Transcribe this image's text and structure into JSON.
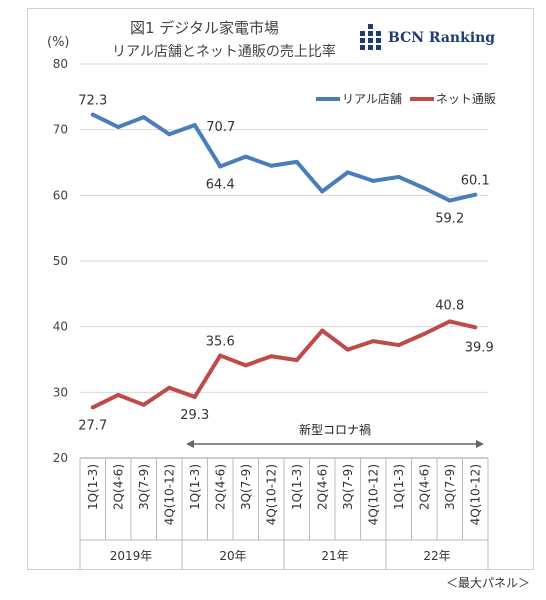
{
  "header": {
    "title": "図1 デジタル家電市場",
    "subtitle": "リアル店舗とネット通販の売上比率",
    "unit": "(%)",
    "brand": "BCN Ranking"
  },
  "footer_note": "＜最大パネル＞",
  "colors": {
    "real": "#4a7ebb",
    "net": "#be4b48",
    "axis": "#888888",
    "grid": "#d9d9d9"
  },
  "chart_data": {
    "type": "line",
    "categories": [
      "1Q(1-3)",
      "2Q(4-6)",
      "3Q(7-9)",
      "4Q(10-12)",
      "1Q(1-3)",
      "2Q(4-6)",
      "3Q(7-9)",
      "4Q(10-12)",
      "1Q(1-3)",
      "2Q(4-6)",
      "3Q(7-9)",
      "4Q(10-12)",
      "1Q(1-3)",
      "2Q(4-6)",
      "3Q(7-9)",
      "4Q(10-12)"
    ],
    "year_groups": [
      {
        "label": "2019年",
        "count": 4
      },
      {
        "label": "20年",
        "count": 4
      },
      {
        "label": "21年",
        "count": 4
      },
      {
        "label": "22年",
        "count": 4
      }
    ],
    "series": [
      {
        "name": "リアル店舗",
        "color": "#4a7ebb",
        "values": [
          72.3,
          70.4,
          71.9,
          69.3,
          70.7,
          64.4,
          65.9,
          64.5,
          65.1,
          60.6,
          63.5,
          62.2,
          62.8,
          61.1,
          59.2,
          60.1
        ]
      },
      {
        "name": "ネット通販",
        "color": "#be4b48",
        "values": [
          27.7,
          29.6,
          28.1,
          30.7,
          29.3,
          35.6,
          34.1,
          35.5,
          34.9,
          39.4,
          36.5,
          37.8,
          37.2,
          38.9,
          40.8,
          39.9
        ]
      }
    ],
    "data_labels": [
      {
        "series": 0,
        "index": 0,
        "text": "72.3"
      },
      {
        "series": 0,
        "index": 4,
        "text": "70.7"
      },
      {
        "series": 0,
        "index": 5,
        "text": "64.4"
      },
      {
        "series": 0,
        "index": 14,
        "text": "59.2"
      },
      {
        "series": 0,
        "index": 15,
        "text": "60.1"
      },
      {
        "series": 1,
        "index": 0,
        "text": "27.7"
      },
      {
        "series": 1,
        "index": 4,
        "text": "29.3"
      },
      {
        "series": 1,
        "index": 5,
        "text": "35.6"
      },
      {
        "series": 1,
        "index": 14,
        "text": "40.8"
      },
      {
        "series": 1,
        "index": 15,
        "text": "39.9"
      }
    ],
    "yticks": [
      20,
      30,
      40,
      50,
      60,
      70,
      80
    ],
    "ylim": [
      20,
      80
    ],
    "grid": true,
    "legend_position": "top-right",
    "annotation": {
      "text": "新型コロナ禍",
      "from_index": 4,
      "to_index": 15
    }
  }
}
